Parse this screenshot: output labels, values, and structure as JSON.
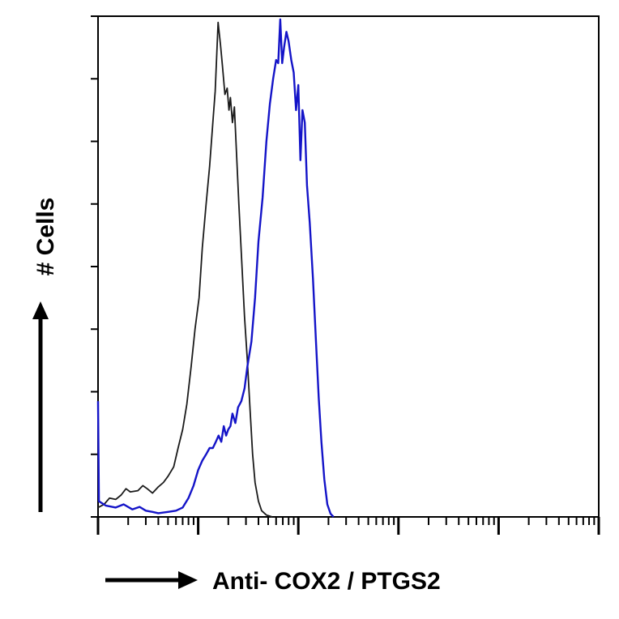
{
  "chart_data": {
    "type": "line",
    "title": "",
    "xlabel": "Anti- COX2 / PTGS2",
    "ylabel": "# Cells",
    "x_scale": "log",
    "xlim": [
      1,
      100000
    ],
    "ylim": [
      0,
      8
    ],
    "grid": false,
    "legend": "none",
    "series": [
      {
        "color": "#1a1a1a",
        "points": [
          [
            1,
            0.15
          ],
          [
            1.15,
            0.2
          ],
          [
            1.3,
            0.3
          ],
          [
            1.5,
            0.28
          ],
          [
            1.7,
            0.35
          ],
          [
            1.9,
            0.45
          ],
          [
            2.1,
            0.4
          ],
          [
            2.5,
            0.42
          ],
          [
            2.8,
            0.5
          ],
          [
            3.1,
            0.45
          ],
          [
            3.5,
            0.38
          ],
          [
            4,
            0.48
          ],
          [
            4.5,
            0.55
          ],
          [
            5,
            0.65
          ],
          [
            5.7,
            0.8
          ],
          [
            6.3,
            1.1
          ],
          [
            7,
            1.4
          ],
          [
            7.7,
            1.8
          ],
          [
            8.5,
            2.4
          ],
          [
            9.3,
            3.0
          ],
          [
            10.2,
            3.5
          ],
          [
            11,
            4.3
          ],
          [
            12,
            5.0
          ],
          [
            13,
            5.6
          ],
          [
            14,
            6.3
          ],
          [
            14.8,
            6.8
          ],
          [
            15.8,
            7.9
          ],
          [
            16.7,
            7.55
          ],
          [
            17.5,
            7.2
          ],
          [
            18.5,
            6.75
          ],
          [
            19.5,
            6.85
          ],
          [
            20.3,
            6.5
          ],
          [
            21,
            6.7
          ],
          [
            22,
            6.3
          ],
          [
            23,
            6.55
          ],
          [
            24,
            5.9
          ],
          [
            25.5,
            5.0
          ],
          [
            27,
            4.2
          ],
          [
            29,
            3.2
          ],
          [
            31,
            2.5
          ],
          [
            33,
            1.7
          ],
          [
            35,
            1.0
          ],
          [
            37,
            0.55
          ],
          [
            40,
            0.25
          ],
          [
            43,
            0.1
          ],
          [
            48,
            0.03
          ],
          [
            55,
            0.0
          ]
        ]
      },
      {
        "color": "#1414c8",
        "points": [
          [
            1,
            1.85
          ],
          [
            1.02,
            0.25
          ],
          [
            1.2,
            0.18
          ],
          [
            1.5,
            0.15
          ],
          [
            1.8,
            0.2
          ],
          [
            2.2,
            0.12
          ],
          [
            2.6,
            0.16
          ],
          [
            3,
            0.1
          ],
          [
            3.5,
            0.08
          ],
          [
            4,
            0.06
          ],
          [
            5,
            0.08
          ],
          [
            6,
            0.1
          ],
          [
            7,
            0.15
          ],
          [
            8,
            0.3
          ],
          [
            9,
            0.5
          ],
          [
            10,
            0.75
          ],
          [
            11,
            0.9
          ],
          [
            12,
            1.0
          ],
          [
            13,
            1.1
          ],
          [
            14,
            1.1
          ],
          [
            15,
            1.2
          ],
          [
            16,
            1.3
          ],
          [
            17,
            1.2
          ],
          [
            18,
            1.45
          ],
          [
            19,
            1.3
          ],
          [
            20,
            1.4
          ],
          [
            21,
            1.45
          ],
          [
            22,
            1.65
          ],
          [
            23.5,
            1.5
          ],
          [
            25,
            1.75
          ],
          [
            27,
            1.85
          ],
          [
            29,
            2.05
          ],
          [
            31,
            2.4
          ],
          [
            34,
            2.8
          ],
          [
            37,
            3.5
          ],
          [
            40,
            4.4
          ],
          [
            44,
            5.1
          ],
          [
            48,
            6.0
          ],
          [
            52,
            6.6
          ],
          [
            56,
            7.0
          ],
          [
            60,
            7.3
          ],
          [
            63,
            7.25
          ],
          [
            66,
            7.95
          ],
          [
            69,
            7.25
          ],
          [
            72,
            7.5
          ],
          [
            76,
            7.75
          ],
          [
            80,
            7.6
          ],
          [
            85,
            7.3
          ],
          [
            90,
            7.1
          ],
          [
            95,
            6.5
          ],
          [
            100,
            6.9
          ],
          [
            105,
            5.7
          ],
          [
            110,
            6.5
          ],
          [
            116,
            6.3
          ],
          [
            122,
            5.3
          ],
          [
            130,
            4.7
          ],
          [
            140,
            3.8
          ],
          [
            150,
            2.8
          ],
          [
            160,
            1.9
          ],
          [
            170,
            1.2
          ],
          [
            182,
            0.6
          ],
          [
            195,
            0.2
          ],
          [
            210,
            0.05
          ],
          [
            225,
            0.0
          ]
        ]
      }
    ]
  }
}
